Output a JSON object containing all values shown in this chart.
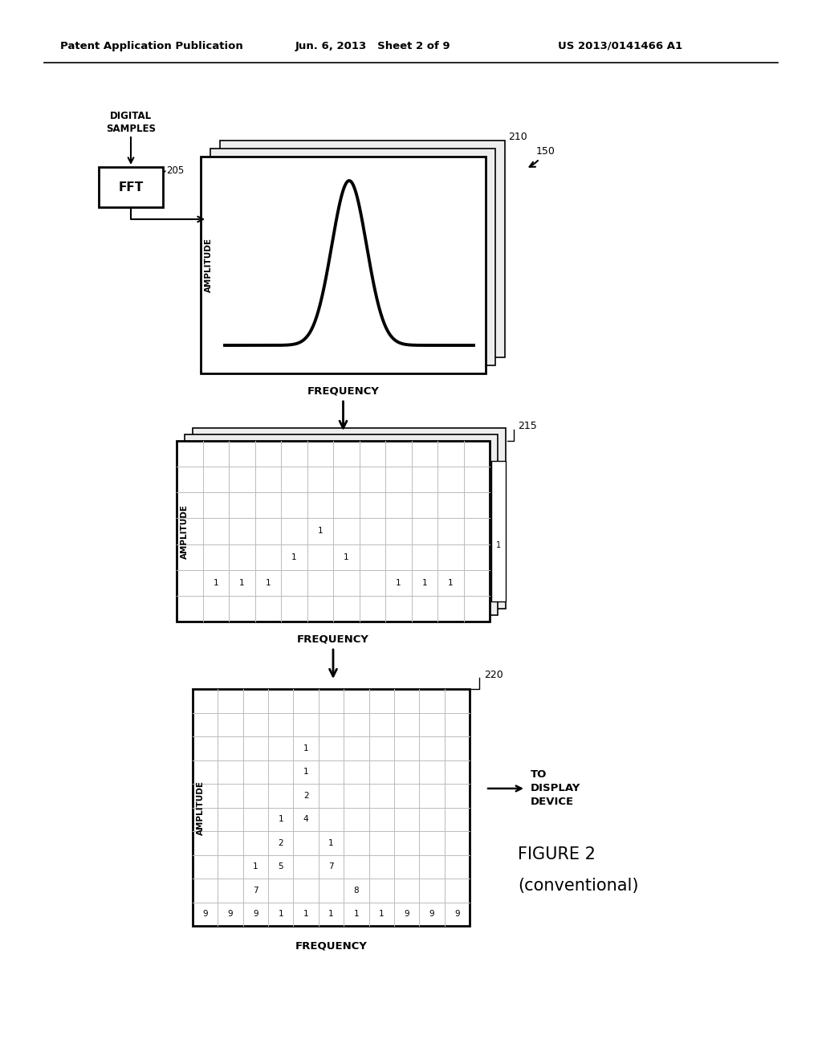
{
  "bg_color": "#ffffff",
  "header_left": "Patent Application Publication",
  "header_mid": "Jun. 6, 2013   Sheet 2 of 9",
  "header_right": "US 2013/0141466 A1",
  "label_210": "210",
  "label_215": "215",
  "label_220": "220",
  "label_150": "150",
  "label_205": "205",
  "fft_label": "FFT",
  "digital_samples": "DIGITAL\nSAMPLES",
  "freq_label": "FREQUENCY",
  "amp_label": "AMPLITUDE",
  "to_display": "TO\nDISPLAY\nDEVICE",
  "fig2_line1": "FIGURE 2",
  "fig2_line2": "(conventional)",
  "grid_215_data": [
    [
      "",
      "",
      "",
      "",
      "",
      "",
      "",
      "",
      "",
      "",
      ""
    ],
    [
      "",
      "",
      "",
      "",
      "",
      "",
      "",
      "",
      "",
      "",
      ""
    ],
    [
      "",
      "",
      "",
      "",
      "1",
      "",
      "",
      "",
      "",
      "",
      ""
    ],
    [
      "",
      "",
      "",
      "1",
      "",
      "1",
      "",
      "",
      "",
      "",
      ""
    ],
    [
      "1",
      "1",
      "1",
      "",
      "",
      "",
      "",
      "1",
      "1",
      "1",
      ""
    ],
    [
      "",
      "",
      "",
      "",
      "",
      "",
      "",
      "",
      "",
      "",
      ""
    ]
  ],
  "grid_220_data": [
    [
      "",
      "",
      "",
      "",
      "",
      "",
      "",
      "",
      "",
      "",
      ""
    ],
    [
      "",
      "",
      "",
      "",
      "1",
      "",
      "",
      "",
      "",
      "",
      ""
    ],
    [
      "",
      "",
      "",
      "",
      "1",
      "",
      "",
      "",
      "",
      "",
      ""
    ],
    [
      "",
      "",
      "",
      "",
      "2",
      "",
      "",
      "",
      "",
      "",
      ""
    ],
    [
      "",
      "",
      "",
      "1",
      "4",
      "",
      "",
      "",
      "",
      "",
      ""
    ],
    [
      "",
      "",
      "",
      "2",
      "",
      "1",
      "",
      "",
      "",
      "",
      ""
    ],
    [
      "",
      "",
      "1",
      "5",
      "",
      "7",
      "",
      "",
      "",
      "",
      ""
    ],
    [
      "",
      "",
      "7",
      "",
      "",
      "",
      "8",
      "",
      "",
      "",
      ""
    ],
    [
      "9",
      "9",
      "9",
      "1",
      "1",
      "1",
      "1",
      "1",
      "9",
      "9",
      "9"
    ]
  ]
}
